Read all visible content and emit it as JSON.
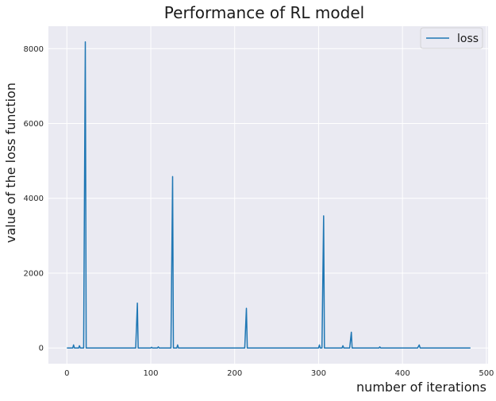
{
  "chart_data": {
    "type": "line",
    "title": "Performance of RL model",
    "xlabel": "number of iterations",
    "ylabel": "value of the loss function",
    "xlim": [
      -22,
      502
    ],
    "ylim": [
      -420,
      8600
    ],
    "xticks": [
      0,
      100,
      200,
      300,
      400,
      500
    ],
    "yticks": [
      0,
      2000,
      4000,
      6000,
      8000
    ],
    "grid": true,
    "legend": "top-right",
    "series": [
      {
        "name": "loss",
        "color": "#1f77b4",
        "points": [
          [
            0,
            0
          ],
          [
            7,
            0
          ],
          [
            8,
            80
          ],
          [
            9,
            0
          ],
          [
            14,
            0
          ],
          [
            15,
            60
          ],
          [
            16,
            0
          ],
          [
            20,
            0
          ],
          [
            22,
            8180
          ],
          [
            23,
            0
          ],
          [
            50,
            0
          ],
          [
            82,
            0
          ],
          [
            84,
            1200
          ],
          [
            85,
            0
          ],
          [
            100,
            0
          ],
          [
            101,
            20
          ],
          [
            102,
            0
          ],
          [
            108,
            0
          ],
          [
            109,
            30
          ],
          [
            110,
            0
          ],
          [
            124,
            0
          ],
          [
            126,
            4580
          ],
          [
            127,
            0
          ],
          [
            131,
            0
          ],
          [
            132,
            80
          ],
          [
            133,
            0
          ],
          [
            160,
            0
          ],
          [
            170,
            0
          ],
          [
            200,
            0
          ],
          [
            212,
            0
          ],
          [
            214,
            1060
          ],
          [
            215,
            0
          ],
          [
            250,
            0
          ],
          [
            270,
            0
          ],
          [
            300,
            0
          ],
          [
            301,
            80
          ],
          [
            302,
            0
          ],
          [
            304,
            0
          ],
          [
            306,
            3530
          ],
          [
            307,
            0
          ],
          [
            320,
            0
          ],
          [
            328,
            0
          ],
          [
            329,
            60
          ],
          [
            330,
            0
          ],
          [
            337,
            0
          ],
          [
            339,
            420
          ],
          [
            340,
            0
          ],
          [
            372,
            0
          ],
          [
            373,
            30
          ],
          [
            374,
            0
          ],
          [
            390,
            0
          ],
          [
            418,
            0
          ],
          [
            420,
            80
          ],
          [
            421,
            0
          ],
          [
            450,
            0
          ],
          [
            481,
            0
          ]
        ]
      }
    ]
  }
}
